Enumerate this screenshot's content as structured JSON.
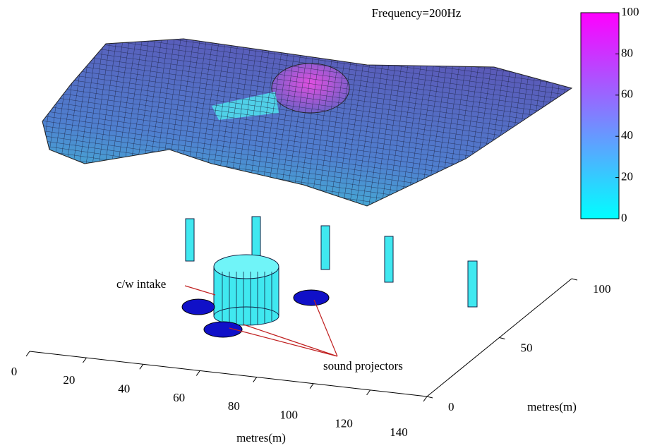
{
  "chart_data": {
    "type": "surface",
    "title": "Frequency=200Hz",
    "xlabel": "metres(m)",
    "ylabel": "metres(m)",
    "xlim": [
      0,
      140
    ],
    "xticks": [
      0,
      20,
      40,
      60,
      80,
      100,
      120,
      140
    ],
    "ylim": [
      0,
      100
    ],
    "yticks": [
      0,
      50,
      100
    ],
    "colorbar": {
      "lim": [
        0,
        100
      ],
      "ticks": [
        0,
        20,
        40,
        60,
        80,
        100
      ],
      "colors": [
        "#00ffff",
        "#ff00ff"
      ]
    },
    "annotations": [
      "c/w intake",
      "sound projectors"
    ]
  }
}
